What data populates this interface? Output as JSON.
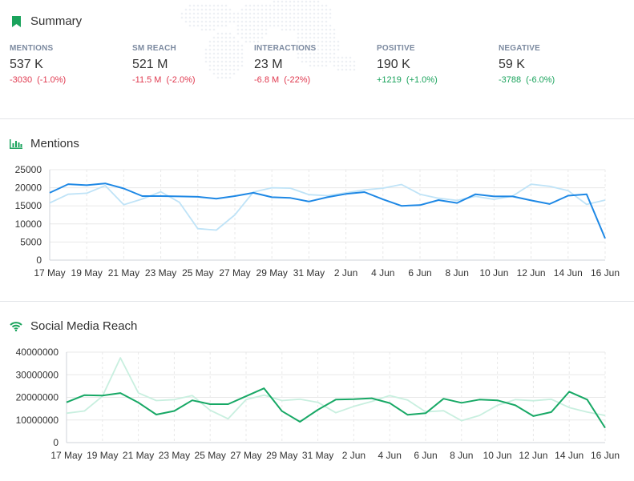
{
  "summary": {
    "title": "Summary",
    "kpis": [
      {
        "label": "MENTIONS",
        "value": "537 K",
        "delta_abs": "-3030",
        "delta_pct": "(-1.0%)",
        "trend": "neg"
      },
      {
        "label": "SM REACH",
        "value": "521 M",
        "delta_abs": "-11.5 M",
        "delta_pct": "(-2.0%)",
        "trend": "neg"
      },
      {
        "label": "INTERACTIONS",
        "value": "23 M",
        "delta_abs": "-6.8 M",
        "delta_pct": "(-22%)",
        "trend": "neg"
      },
      {
        "label": "POSITIVE",
        "value": "190 K",
        "delta_abs": "+1219",
        "delta_pct": "(+1.0%)",
        "trend": "pos"
      },
      {
        "label": "NEGATIVE",
        "value": "59 K",
        "delta_abs": "-3788",
        "delta_pct": "(-6.0%)",
        "trend": "pos"
      }
    ]
  },
  "colors": {
    "bookmark": "#1aa35c",
    "mentions_primary": "#1e88e5",
    "mentions_secondary": "#bfe3f7",
    "reach_primary": "#17a865",
    "reach_secondary": "#c8efdf",
    "grid": "#e8e8e8"
  },
  "icons": {
    "summary": "bookmark-icon",
    "mentions": "bar-chart-icon",
    "reach": "wifi-icon"
  },
  "chart_data": [
    {
      "type": "line",
      "title": "Mentions",
      "x": [
        "17 May",
        "18 May",
        "19 May",
        "20 May",
        "21 May",
        "22 May",
        "23 May",
        "24 May",
        "25 May",
        "26 May",
        "27 May",
        "28 May",
        "29 May",
        "30 May",
        "31 May",
        "1 Jun",
        "2 Jun",
        "3 Jun",
        "4 Jun",
        "5 Jun",
        "6 Jun",
        "7 Jun",
        "8 Jun",
        "9 Jun",
        "10 Jun",
        "11 Jun",
        "12 Jun",
        "13 Jun",
        "14 Jun",
        "15 Jun",
        "16 Jun"
      ],
      "x_tick_labels": [
        "17 May",
        "19 May",
        "21 May",
        "23 May",
        "25 May",
        "27 May",
        "29 May",
        "31 May",
        "2 Jun",
        "4 Jun",
        "6 Jun",
        "8 Jun",
        "10 Jun",
        "12 Jun",
        "14 Jun",
        "16 Jun"
      ],
      "y_ticks": [
        "0",
        "5000",
        "10000",
        "15000",
        "20000",
        "25000"
      ],
      "ylim": [
        0,
        25000
      ],
      "series": [
        {
          "role": "previous",
          "values": [
            15800,
            18200,
            18500,
            20600,
            15300,
            16900,
            18900,
            16000,
            8700,
            8300,
            12500,
            18800,
            20000,
            19900,
            18100,
            17800,
            18600,
            19400,
            19900,
            20900,
            18200,
            17100,
            16500,
            17600,
            16800,
            17700,
            21000,
            20400,
            19200,
            15400,
            16600
          ]
        },
        {
          "role": "current",
          "values": [
            18600,
            21000,
            20700,
            21200,
            19800,
            17700,
            17700,
            17600,
            17500,
            17000,
            17700,
            18600,
            17400,
            17200,
            16200,
            17400,
            18300,
            18800,
            16800,
            15000,
            15200,
            16600,
            15800,
            18200,
            17600,
            17600,
            16500,
            15500,
            17800,
            18200,
            6000
          ]
        }
      ]
    },
    {
      "type": "line",
      "title": "Social Media Reach",
      "x": [
        "17 May",
        "18 May",
        "19 May",
        "20 May",
        "21 May",
        "22 May",
        "23 May",
        "24 May",
        "25 May",
        "26 May",
        "27 May",
        "28 May",
        "29 May",
        "30 May",
        "31 May",
        "1 Jun",
        "2 Jun",
        "3 Jun",
        "4 Jun",
        "5 Jun",
        "6 Jun",
        "7 Jun",
        "8 Jun",
        "9 Jun",
        "10 Jun",
        "11 Jun",
        "12 Jun",
        "13 Jun",
        "14 Jun",
        "15 Jun",
        "16 Jun"
      ],
      "x_tick_labels": [
        "17 May",
        "19 May",
        "21 May",
        "23 May",
        "25 May",
        "27 May",
        "29 May",
        "31 May",
        "2 Jun",
        "4 Jun",
        "6 Jun",
        "8 Jun",
        "10 Jun",
        "12 Jun",
        "14 Jun",
        "16 Jun"
      ],
      "y_ticks": [
        "0",
        "10000000",
        "20000000",
        "30000000",
        "40000000"
      ],
      "ylim": [
        0,
        40000000
      ],
      "series": [
        {
          "role": "previous",
          "values": [
            13000000,
            14000000,
            20500000,
            37500000,
            22000000,
            18600000,
            19000000,
            20800000,
            14300000,
            10500000,
            19000000,
            21000000,
            18600000,
            19200000,
            17800000,
            13200000,
            16000000,
            18200000,
            20800000,
            18800000,
            13600000,
            14100000,
            9700000,
            12000000,
            16500000,
            19000000,
            18500000,
            19200000,
            15500000,
            13500000,
            12000000
          ]
        },
        {
          "role": "current",
          "values": [
            17800000,
            21000000,
            20800000,
            21900000,
            17700000,
            12400000,
            14000000,
            18700000,
            17000000,
            17000000,
            20500000,
            24000000,
            13900000,
            9200000,
            14500000,
            19000000,
            19200000,
            19600000,
            17500000,
            12300000,
            13000000,
            19400000,
            17600000,
            19000000,
            18700000,
            16500000,
            11700000,
            13500000,
            22500000,
            19000000,
            6500000
          ]
        }
      ]
    }
  ]
}
